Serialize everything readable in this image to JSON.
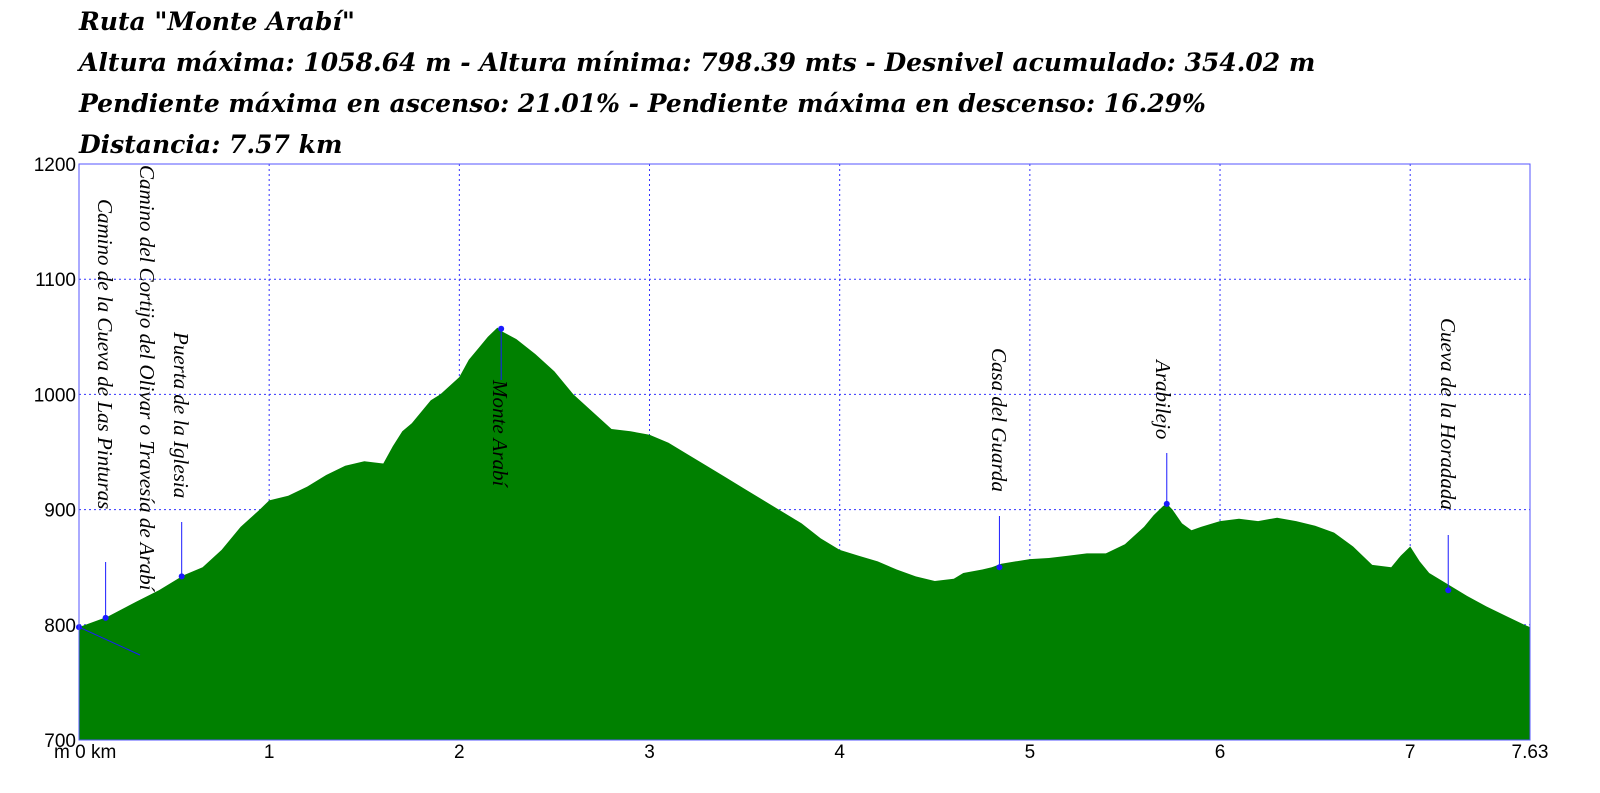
{
  "header": {
    "line1": "Ruta \"Monte Arabí\"",
    "line2": "Altura máxima: 1058.64 m - Altura mínima: 798.39 mts - Desnivel acumulado: 354.02 m",
    "line3": "Pendiente máxima en ascenso: 21.01% - Pendiente máxima en descenso: 16.29%",
    "line4": "Distancia: 7.57 km"
  },
  "colors": {
    "fill": "#008000",
    "grid": "#3333ff",
    "frame": "#5555ff",
    "marker": "#1a1aff"
  },
  "chart_data": {
    "type": "area",
    "title": "Ruta \"Monte Arabí\"",
    "xlabel": "",
    "ylabel": "",
    "x_unit_label": "m 0 km",
    "xlim": [
      0,
      7.63
    ],
    "ylim": [
      700,
      1200
    ],
    "grid": true,
    "x_ticks": [
      0,
      1,
      2,
      3,
      4,
      5,
      6,
      7,
      7.63
    ],
    "x_tick_labels": [
      "m 0 km",
      "1",
      "2",
      "3",
      "4",
      "5",
      "6",
      "7",
      "7.63"
    ],
    "y_ticks": [
      700,
      800,
      900,
      1000,
      1100,
      1200
    ],
    "y_tick_labels": [
      "700",
      "800",
      "900",
      "1000",
      "1100",
      "1200"
    ],
    "series": [
      {
        "x": [
          0,
          0.15,
          0.3,
          0.42,
          0.55,
          0.65,
          0.75,
          0.85,
          0.95,
          1.0,
          1.1,
          1.2,
          1.3,
          1.4,
          1.5,
          1.6,
          1.65,
          1.7,
          1.75,
          1.8,
          1.85,
          1.9,
          2.0,
          2.05,
          2.1,
          2.15,
          2.2,
          2.22,
          2.3,
          2.4,
          2.5,
          2.6,
          2.7,
          2.8,
          2.9,
          3.0,
          3.1,
          3.2,
          3.3,
          3.4,
          3.5,
          3.6,
          3.7,
          3.8,
          3.9,
          4.0,
          4.1,
          4.2,
          4.3,
          4.4,
          4.5,
          4.6,
          4.65,
          4.75,
          4.8,
          4.85,
          5.0,
          5.1,
          5.2,
          5.3,
          5.4,
          5.5,
          5.6,
          5.65,
          5.7,
          5.72,
          5.75,
          5.8,
          5.85,
          5.9,
          6.0,
          6.1,
          6.2,
          6.3,
          6.4,
          6.5,
          6.6,
          6.7,
          6.8,
          6.9,
          6.95,
          7.0,
          7.05,
          7.1,
          7.2,
          7.3,
          7.4,
          7.5,
          7.6,
          7.63
        ],
        "y": [
          798,
          807,
          820,
          830,
          843,
          850,
          865,
          885,
          900,
          908,
          912,
          920,
          930,
          938,
          942,
          940,
          955,
          968,
          975,
          985,
          995,
          1000,
          1015,
          1030,
          1040,
          1050,
          1058,
          1055,
          1048,
          1035,
          1020,
          1000,
          985,
          970,
          968,
          965,
          958,
          948,
          938,
          928,
          918,
          908,
          898,
          888,
          875,
          865,
          860,
          855,
          848,
          842,
          838,
          840,
          845,
          848,
          850,
          853,
          857,
          858,
          860,
          862,
          862,
          870,
          885,
          895,
          903,
          905,
          900,
          888,
          882,
          885,
          890,
          892,
          890,
          893,
          890,
          886,
          880,
          868,
          852,
          850,
          860,
          868,
          855,
          845,
          835,
          825,
          816,
          808,
          800,
          798
        ]
      }
    ],
    "waypoints": [
      {
        "label": "Camino del Cortijo del Olivar o Travesía de Arabí",
        "x": 0.0,
        "y": 798
      },
      {
        "label": "Camino de la Cueva de Las Pinturas",
        "x": 0.14,
        "y": 806
      },
      {
        "label": "Puerta de la Iglesia",
        "x": 0.54,
        "y": 842
      },
      {
        "label": "Monte Arabí",
        "x": 2.22,
        "y": 1057
      },
      {
        "label": "Casa del Guarda",
        "x": 4.84,
        "y": 850
      },
      {
        "label": "Arabilejo",
        "x": 5.72,
        "y": 905
      },
      {
        "label": "Cueva de la Horadada",
        "x": 7.2,
        "y": 830
      }
    ]
  }
}
